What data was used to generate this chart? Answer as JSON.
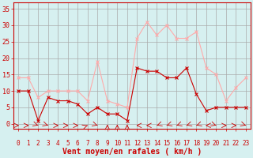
{
  "hours": [
    0,
    1,
    2,
    3,
    4,
    5,
    6,
    7,
    8,
    9,
    10,
    11,
    12,
    13,
    14,
    15,
    16,
    17,
    18,
    19,
    20,
    21,
    22,
    23
  ],
  "wind_avg": [
    10,
    10,
    1,
    8,
    7,
    7,
    6,
    3,
    5,
    3,
    3,
    1,
    17,
    16,
    16,
    14,
    14,
    17,
    9,
    4,
    5,
    5,
    5,
    5
  ],
  "wind_gust": [
    14,
    14,
    8,
    10,
    10,
    10,
    10,
    7,
    19,
    7,
    6,
    5,
    26,
    31,
    27,
    30,
    26,
    26,
    28,
    17,
    15,
    7,
    11,
    14
  ],
  "wind_dir_deg": [
    90,
    90,
    45,
    45,
    90,
    90,
    90,
    135,
    45,
    180,
    180,
    180,
    270,
    270,
    315,
    315,
    315,
    315,
    315,
    270,
    45,
    90,
    90,
    45
  ],
  "color_avg": "#cc0000",
  "color_gust": "#ffaaaa",
  "bg_color": "#d6f0f0",
  "grid_color": "#aaaaaa",
  "axis_color": "#cc0000",
  "xlabel": "Vent moyen/en rafales ( km/h )",
  "xlabel_fontsize": 7,
  "ytick_labels": [
    "0",
    "5",
    "10",
    "15",
    "20",
    "25",
    "30",
    "35"
  ],
  "ytick_vals": [
    0,
    5,
    10,
    15,
    20,
    25,
    30,
    35
  ],
  "ylim": [
    -1.5,
    37
  ],
  "xlim": [
    -0.5,
    23.5
  ]
}
